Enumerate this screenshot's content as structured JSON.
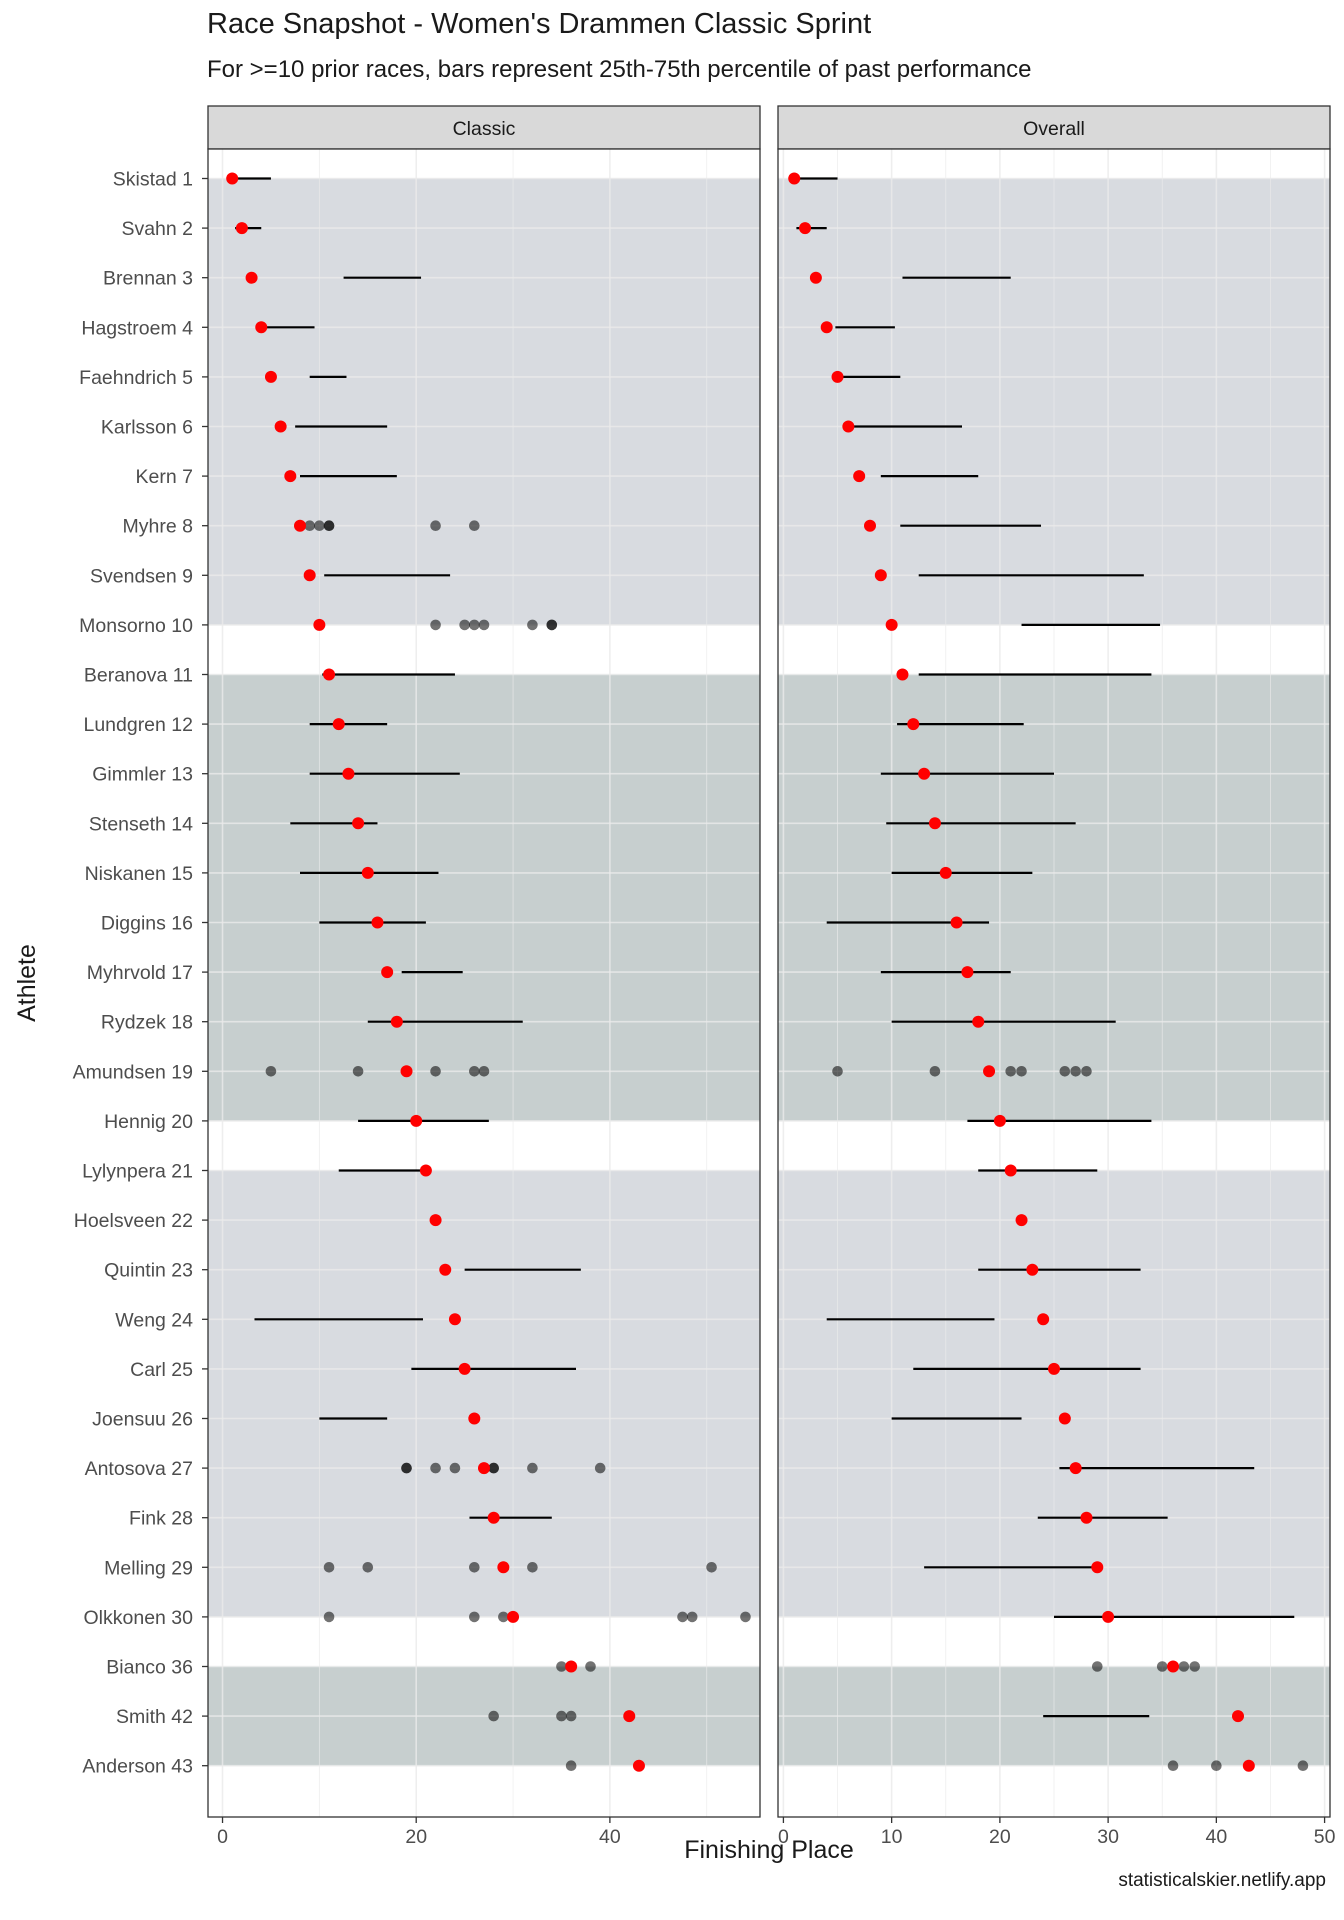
{
  "header": {
    "title": "Race Snapshot -  Women's Drammen Classic Sprint",
    "subtitle": "For >=10 prior races, bars represent 25th-75th percentile of past performance"
  },
  "footer": {
    "caption": "statisticalskier.netlify.app"
  },
  "colors": {
    "current_place": "#ff0000",
    "past_point": "#000000",
    "iqr_bar": "#000000",
    "band_light": "#d8dbe0",
    "band_dark": "#c7cfcf",
    "panel_bg": "#ffffff",
    "strip_bg": "#d9d9d9",
    "grid": "#ebebeb"
  },
  "chart_data": {
    "type": "scatter",
    "xlabel": "Finishing Place",
    "ylabel": "Athlete",
    "athletes": [
      "Skistad 1",
      "Svahn 2",
      "Brennan 3",
      "Hagstroem 4",
      "Faehndrich 5",
      "Karlsson 6",
      "Kern 7",
      "Myhre 8",
      "Svendsen 9",
      "Monsorno 10",
      "Beranova 11",
      "Lundgren 12",
      "Gimmler 13",
      "Stenseth 14",
      "Niskanen 15",
      "Diggins 16",
      "Myhrvold 17",
      "Rydzek 18",
      "Amundsen 19",
      "Hennig 20",
      "Lylynpera 21",
      "Hoelsveen 22",
      "Quintin 23",
      "Weng 24",
      "Carl 25",
      "Joensuu 26",
      "Antosova 27",
      "Fink 28",
      "Melling 29",
      "Olkkonen 30",
      "Bianco 36",
      "Smith 42",
      "Anderson 43"
    ],
    "bands": [
      {
        "from": "Skistad 1",
        "to": "Monsorno 10",
        "shade": "light"
      },
      {
        "from": "Beranova 11",
        "to": "Hennig 20",
        "shade": "dark"
      },
      {
        "from": "Lylynpera 21",
        "to": "Olkkonen 30",
        "shade": "light"
      },
      {
        "from": "Bianco 36",
        "to": "Anderson 43",
        "shade": "dark"
      }
    ],
    "panels": [
      {
        "strip": "Classic",
        "xlim": [
          -1.5,
          55.5
        ],
        "xticks": [
          0,
          20,
          40
        ],
        "rows": [
          {
            "place": 1,
            "bar": [
              1.5,
              5
            ]
          },
          {
            "place": 2,
            "bar": [
              1.3,
              4
            ]
          },
          {
            "place": 3,
            "bar": [
              12.5,
              20.5
            ]
          },
          {
            "place": 4,
            "bar": [
              4,
              9.5
            ]
          },
          {
            "place": 5,
            "bar": [
              9,
              12.8
            ]
          },
          {
            "place": 6,
            "bar": [
              7.5,
              17
            ]
          },
          {
            "place": 7,
            "bar": [
              8,
              18
            ]
          },
          {
            "place": 8,
            "points": [
              9,
              10,
              11,
              11,
              22,
              26
            ]
          },
          {
            "place": 9,
            "bar": [
              10.5,
              23.5
            ]
          },
          {
            "place": 10,
            "points": [
              22,
              25,
              26,
              27,
              32,
              34,
              34
            ]
          },
          {
            "place": 11,
            "bar": [
              10.3,
              24
            ]
          },
          {
            "place": 12,
            "bar": [
              9,
              17
            ]
          },
          {
            "place": 13,
            "bar": [
              9,
              24.5
            ]
          },
          {
            "place": 14,
            "bar": [
              7,
              16
            ]
          },
          {
            "place": 15,
            "bar": [
              8,
              22.3
            ]
          },
          {
            "place": 16,
            "bar": [
              10,
              21
            ]
          },
          {
            "place": 17,
            "bar": [
              18.5,
              24.8
            ]
          },
          {
            "place": 18,
            "bar": [
              15,
              31
            ]
          },
          {
            "place": 19,
            "points": [
              5,
              14,
              22,
              26,
              27
            ]
          },
          {
            "place": 20,
            "bar": [
              14,
              27.5
            ]
          },
          {
            "place": 21,
            "bar": [
              12,
              21
            ]
          },
          {
            "place": 22
          },
          {
            "place": 23,
            "bar": [
              25,
              37
            ]
          },
          {
            "place": 24,
            "bar": [
              3.3,
              20.7
            ]
          },
          {
            "place": 25,
            "bar": [
              19.5,
              36.5
            ]
          },
          {
            "place": 26,
            "bar": [
              10,
              17
            ]
          },
          {
            "place": 27,
            "points": [
              19,
              19,
              22,
              24,
              28,
              28,
              32,
              39
            ]
          },
          {
            "place": 28,
            "bar": [
              25.5,
              34
            ]
          },
          {
            "place": 29,
            "points": [
              11,
              15,
              26,
              32,
              50.5
            ]
          },
          {
            "place": 30,
            "points": [
              11,
              26,
              29,
              47.5,
              48.5,
              54
            ]
          },
          {
            "place": 36,
            "points": [
              35,
              38
            ]
          },
          {
            "place": 42,
            "points": [
              28,
              35,
              36
            ]
          },
          {
            "place": 43,
            "points": [
              36
            ]
          }
        ]
      },
      {
        "strip": "Overall",
        "xlim": [
          -0.5,
          50.5
        ],
        "xticks": [
          0,
          10,
          20,
          30,
          40,
          50
        ],
        "rows": [
          {
            "place": 1,
            "bar": [
              1.2,
              5
            ]
          },
          {
            "place": 2,
            "bar": [
              1.2,
              4
            ]
          },
          {
            "place": 3,
            "bar": [
              11,
              21
            ]
          },
          {
            "place": 4,
            "bar": [
              4.8,
              10.3
            ]
          },
          {
            "place": 5,
            "bar": [
              5,
              10.8
            ]
          },
          {
            "place": 6,
            "bar": [
              6.5,
              16.5
            ]
          },
          {
            "place": 7,
            "bar": [
              9,
              18
            ]
          },
          {
            "place": 8,
            "bar": [
              10.8,
              23.8
            ]
          },
          {
            "place": 9,
            "bar": [
              12.5,
              33.3
            ]
          },
          {
            "place": 10,
            "bar": [
              22,
              34.8
            ]
          },
          {
            "place": 11,
            "bar": [
              12.5,
              34
            ]
          },
          {
            "place": 12,
            "bar": [
              10.5,
              22.2
            ]
          },
          {
            "place": 13,
            "bar": [
              9,
              25
            ]
          },
          {
            "place": 14,
            "bar": [
              9.5,
              27
            ]
          },
          {
            "place": 15,
            "bar": [
              10,
              23
            ]
          },
          {
            "place": 16,
            "bar": [
              4,
              19
            ]
          },
          {
            "place": 17,
            "bar": [
              9,
              21
            ]
          },
          {
            "place": 18,
            "bar": [
              10,
              30.7
            ]
          },
          {
            "place": 19,
            "points": [
              5,
              14,
              21,
              22,
              26,
              27,
              28
            ]
          },
          {
            "place": 20,
            "bar": [
              17,
              34
            ]
          },
          {
            "place": 21,
            "bar": [
              18,
              29
            ]
          },
          {
            "place": 22
          },
          {
            "place": 23,
            "bar": [
              18,
              33
            ]
          },
          {
            "place": 24,
            "bar": [
              4,
              19.5
            ]
          },
          {
            "place": 25,
            "bar": [
              12,
              33
            ]
          },
          {
            "place": 26,
            "bar": [
              10,
              22
            ]
          },
          {
            "place": 27,
            "bar": [
              25.5,
              43.5
            ]
          },
          {
            "place": 28,
            "bar": [
              23.5,
              35.5
            ]
          },
          {
            "place": 29,
            "bar": [
              13,
              29
            ]
          },
          {
            "place": 30,
            "bar": [
              25,
              47.2
            ]
          },
          {
            "place": 36,
            "points": [
              29,
              35,
              37,
              38
            ]
          },
          {
            "place": 42,
            "bar": [
              24,
              33.8
            ]
          },
          {
            "place": 43,
            "points": [
              36,
              40,
              48
            ]
          }
        ]
      }
    ]
  }
}
